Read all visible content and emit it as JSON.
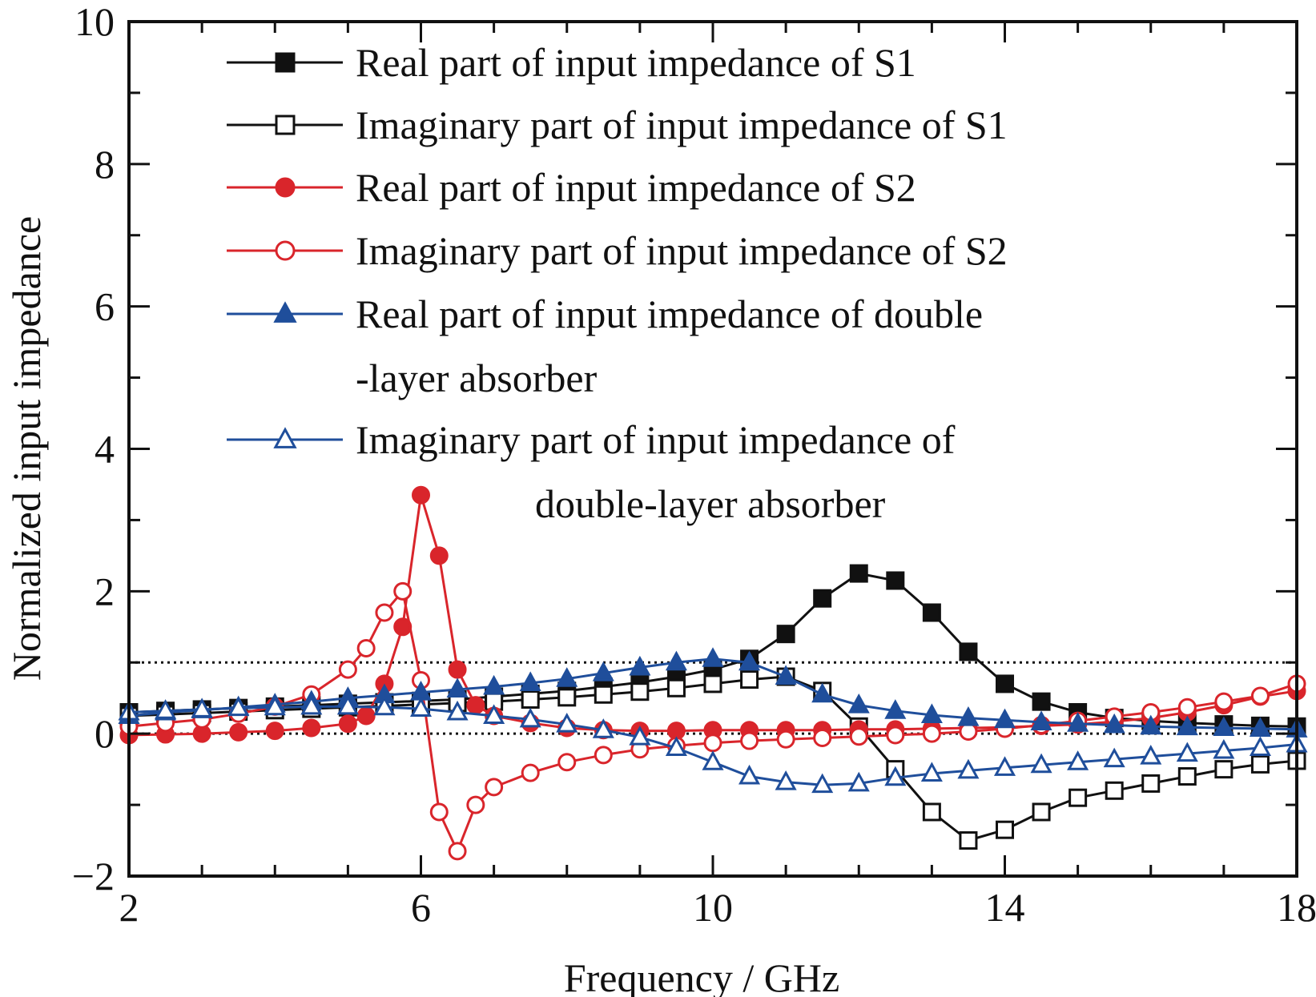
{
  "chart_data": {
    "type": "line",
    "xlabel": "Frequency / GHz",
    "ylabel": "Normalized input impedance",
    "xlim": [
      2,
      18
    ],
    "ylim": [
      -2,
      10
    ],
    "x_ticks": [
      "2",
      "6",
      "10",
      "14",
      "18"
    ],
    "y_ticks": [
      "−2",
      "0",
      "2",
      "4",
      "6",
      "8",
      "10"
    ],
    "reference_lines": [
      0,
      1
    ],
    "grid": false,
    "legend_position": "top-right",
    "series": [
      {
        "name": "Real part of input impedance of S1",
        "color": "#111111",
        "marker": "square-filled",
        "x": [
          2.0,
          2.5,
          3.0,
          3.5,
          4.0,
          4.5,
          5.0,
          5.5,
          6.0,
          6.5,
          7.0,
          7.5,
          8.0,
          8.5,
          9.0,
          9.5,
          10.0,
          10.5,
          11.0,
          11.5,
          12.0,
          12.5,
          13.0,
          13.5,
          14.0,
          14.5,
          15.0,
          15.5,
          16.0,
          16.5,
          17.0,
          17.5,
          18.0
        ],
        "y": [
          0.3,
          0.32,
          0.34,
          0.36,
          0.38,
          0.4,
          0.42,
          0.44,
          0.46,
          0.48,
          0.52,
          0.56,
          0.6,
          0.66,
          0.72,
          0.8,
          0.9,
          1.05,
          1.4,
          1.9,
          2.25,
          2.15,
          1.7,
          1.15,
          0.7,
          0.45,
          0.3,
          0.22,
          0.18,
          0.15,
          0.13,
          0.11,
          0.1
        ]
      },
      {
        "name": "Imaginary part of input impedance of S1",
        "color": "#111111",
        "marker": "square-open",
        "x": [
          2.0,
          2.5,
          3.0,
          3.5,
          4.0,
          4.5,
          5.0,
          5.5,
          6.0,
          6.5,
          7.0,
          7.5,
          8.0,
          8.5,
          9.0,
          9.5,
          10.0,
          10.5,
          11.0,
          11.5,
          12.0,
          12.5,
          13.0,
          13.5,
          14.0,
          14.5,
          15.0,
          15.5,
          16.0,
          16.5,
          17.0,
          17.5,
          18.0
        ],
        "y": [
          0.25,
          0.27,
          0.29,
          0.31,
          0.33,
          0.35,
          0.37,
          0.39,
          0.41,
          0.43,
          0.45,
          0.48,
          0.51,
          0.55,
          0.59,
          0.64,
          0.7,
          0.76,
          0.8,
          0.6,
          0.1,
          -0.5,
          -1.1,
          -1.5,
          -1.35,
          -1.1,
          -0.9,
          -0.8,
          -0.7,
          -0.6,
          -0.5,
          -0.43,
          -0.38
        ]
      },
      {
        "name": "Real part of input impedance of S2",
        "color": "#d9252b",
        "marker": "circle-filled",
        "x": [
          2.0,
          2.5,
          3.0,
          3.5,
          4.0,
          4.5,
          5.0,
          5.25,
          5.5,
          5.75,
          6.0,
          6.25,
          6.5,
          6.75,
          7.0,
          7.5,
          8.0,
          8.5,
          9.0,
          9.5,
          10.0,
          10.5,
          11.0,
          11.5,
          12.0,
          12.5,
          13.0,
          13.5,
          14.0,
          14.5,
          15.0,
          15.5,
          16.0,
          16.5,
          17.0,
          17.5,
          18.0
        ],
        "y": [
          -0.02,
          -0.01,
          0.0,
          0.02,
          0.04,
          0.08,
          0.14,
          0.25,
          0.7,
          1.5,
          3.35,
          2.5,
          0.9,
          0.4,
          0.25,
          0.15,
          0.08,
          0.05,
          0.04,
          0.04,
          0.05,
          0.05,
          0.05,
          0.05,
          0.06,
          0.06,
          0.07,
          0.08,
          0.09,
          0.11,
          0.13,
          0.17,
          0.22,
          0.3,
          0.4,
          0.52,
          0.6
        ]
      },
      {
        "name": "Imaginary part of input impedance of S2",
        "color": "#d9252b",
        "marker": "circle-open",
        "x": [
          2.0,
          2.5,
          3.0,
          3.5,
          4.0,
          4.5,
          5.0,
          5.25,
          5.5,
          5.75,
          6.0,
          6.25,
          6.5,
          6.75,
          7.0,
          7.5,
          8.0,
          8.5,
          9.0,
          9.5,
          10.0,
          10.5,
          11.0,
          11.5,
          12.0,
          12.5,
          13.0,
          13.5,
          14.0,
          14.5,
          15.0,
          15.5,
          16.0,
          16.5,
          17.0,
          17.5,
          18.0
        ],
        "y": [
          0.1,
          0.15,
          0.2,
          0.28,
          0.38,
          0.55,
          0.9,
          1.2,
          1.7,
          2.0,
          0.75,
          -1.1,
          -1.65,
          -1.0,
          -0.75,
          -0.55,
          -0.4,
          -0.3,
          -0.22,
          -0.17,
          -0.13,
          -0.1,
          -0.08,
          -0.06,
          -0.04,
          -0.02,
          0.0,
          0.03,
          0.07,
          0.12,
          0.18,
          0.24,
          0.3,
          0.37,
          0.45,
          0.53,
          0.7
        ]
      },
      {
        "name": "Real part of input impedance of double -layer absorber",
        "color": "#1f4e9b",
        "marker": "triangle-filled",
        "x": [
          2.0,
          2.5,
          3.0,
          3.5,
          4.0,
          4.5,
          5.0,
          5.5,
          6.0,
          6.5,
          7.0,
          7.5,
          8.0,
          8.5,
          9.0,
          9.5,
          10.0,
          10.5,
          11.0,
          11.5,
          12.0,
          12.5,
          13.0,
          13.5,
          14.0,
          14.5,
          15.0,
          15.5,
          16.0,
          16.5,
          17.0,
          17.5,
          18.0
        ],
        "y": [
          0.25,
          0.3,
          0.33,
          0.37,
          0.41,
          0.45,
          0.5,
          0.54,
          0.58,
          0.62,
          0.66,
          0.71,
          0.77,
          0.85,
          0.93,
          1.0,
          1.05,
          1.0,
          0.8,
          0.55,
          0.4,
          0.32,
          0.26,
          0.22,
          0.19,
          0.16,
          0.14,
          0.12,
          0.1,
          0.09,
          0.08,
          0.07,
          0.06
        ]
      },
      {
        "name": "Imaginary part of input impedance of double-layer absorber",
        "color": "#1f4e9b",
        "marker": "triangle-open",
        "x": [
          2.0,
          2.5,
          3.0,
          3.5,
          4.0,
          4.5,
          5.0,
          5.5,
          6.0,
          6.5,
          7.0,
          7.5,
          8.0,
          8.5,
          9.0,
          9.5,
          10.0,
          10.5,
          11.0,
          11.5,
          12.0,
          12.5,
          13.0,
          13.5,
          14.0,
          14.5,
          15.0,
          15.5,
          16.0,
          16.5,
          17.0,
          17.5,
          18.0
        ],
        "y": [
          0.3,
          0.32,
          0.34,
          0.36,
          0.37,
          0.38,
          0.38,
          0.37,
          0.35,
          0.3,
          0.25,
          0.2,
          0.13,
          0.05,
          -0.05,
          -0.2,
          -0.4,
          -0.6,
          -0.68,
          -0.72,
          -0.7,
          -0.62,
          -0.56,
          -0.52,
          -0.48,
          -0.44,
          -0.4,
          -0.36,
          -0.32,
          -0.28,
          -0.24,
          -0.2,
          -0.15
        ]
      }
    ]
  }
}
